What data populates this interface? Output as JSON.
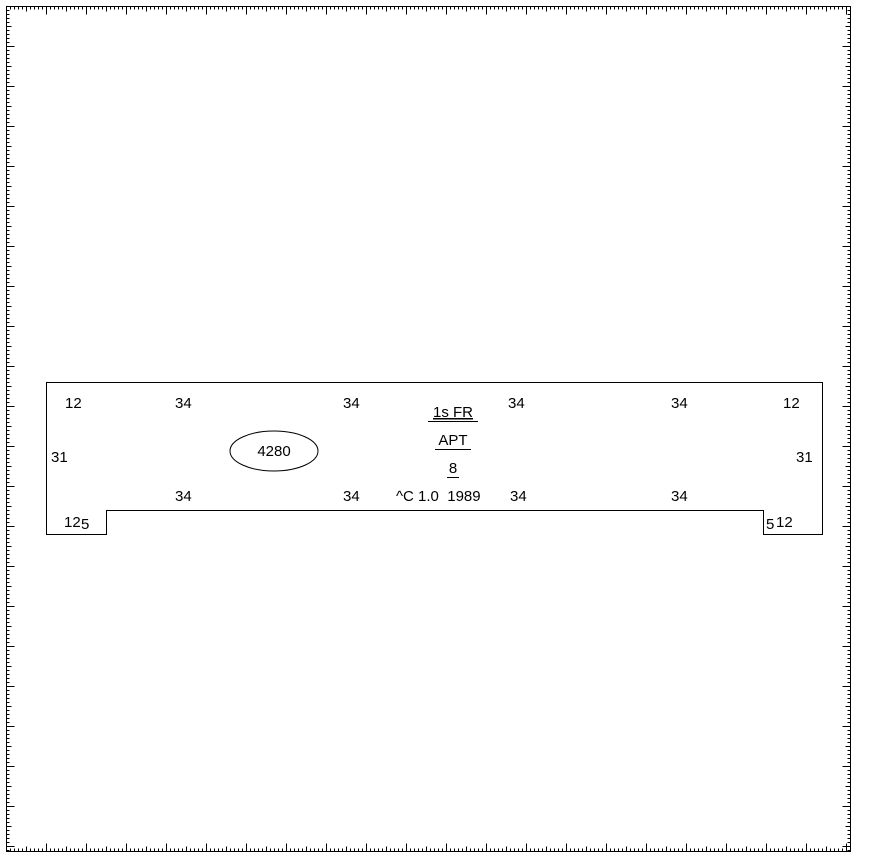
{
  "colors": {
    "background": "#ffffff",
    "line": "#000000"
  },
  "dimensions": {
    "top_left_corner": "12",
    "top_left_run": "34",
    "top_left_mid_run": "34",
    "top_right_mid_run": "34",
    "top_right_run": "34",
    "top_right_corner": "12",
    "left_side": "31",
    "right_side": "31",
    "bottom_left_run": "34",
    "bottom_left_mid_run": "34",
    "bottom_right_mid_run": "34",
    "bottom_right_run": "34",
    "notch_left_width": "12",
    "notch_left_depth": "5",
    "notch_right_depth": "5",
    "notch_right_width": "12"
  },
  "area_tag": {
    "value": "4280"
  },
  "info": {
    "story": "1s FR",
    "use": "APT",
    "units": "8",
    "grade_year": "^C 1.0  1989"
  }
}
